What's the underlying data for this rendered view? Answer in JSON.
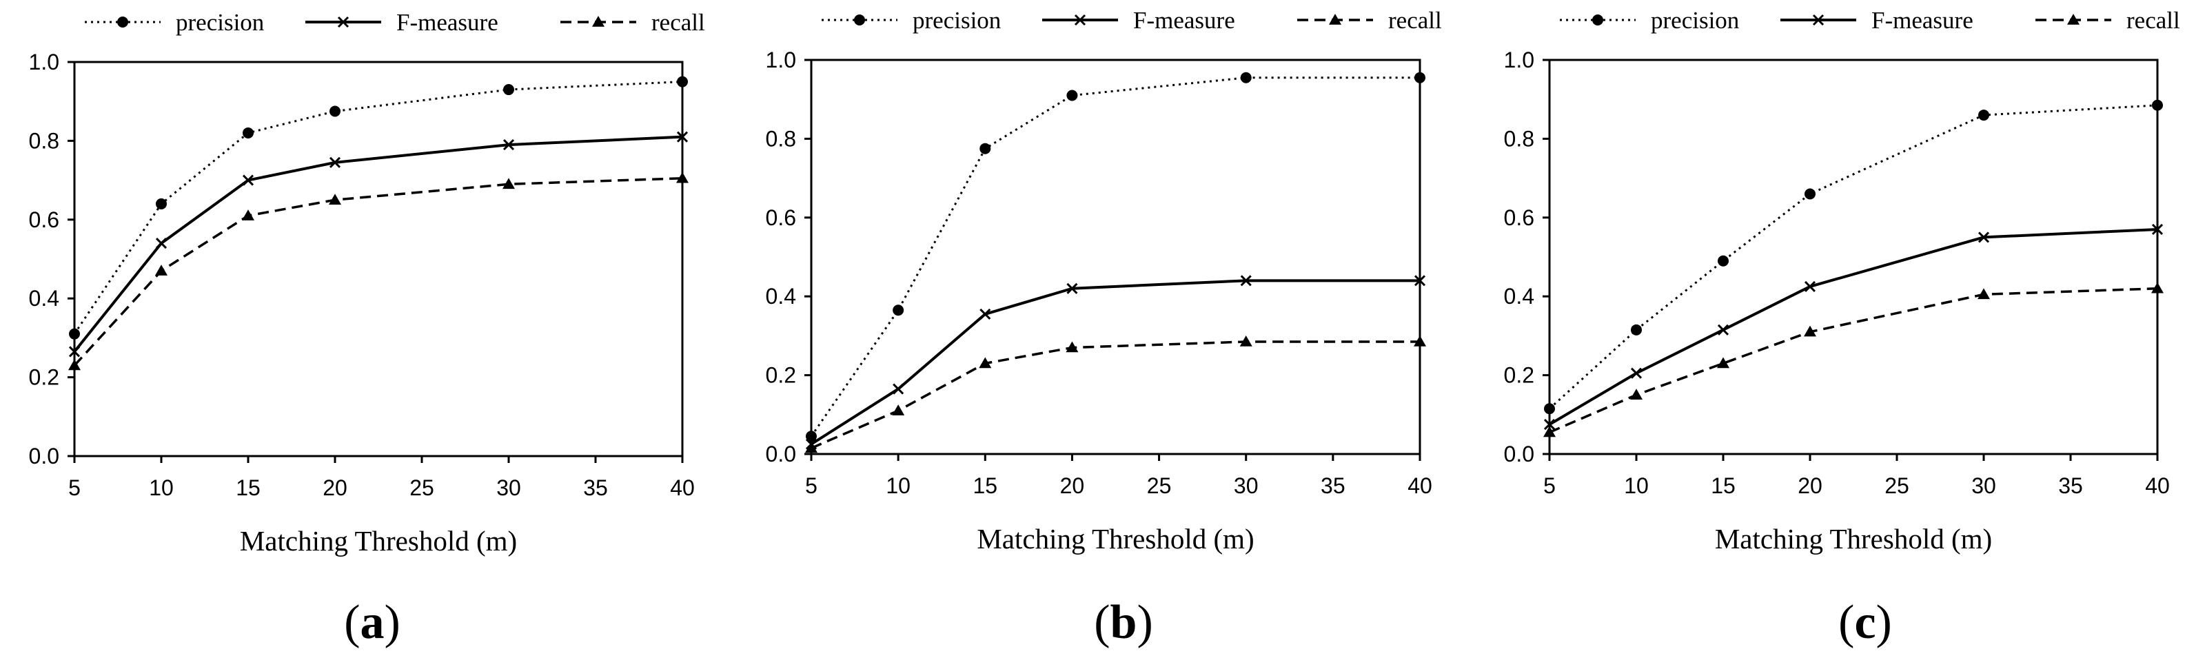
{
  "chart_data": [
    {
      "type": "line",
      "caption_letter": "a",
      "x": [
        5,
        10,
        15,
        20,
        30,
        40
      ],
      "series": [
        {
          "name": "precision",
          "values": [
            0.31,
            0.64,
            0.82,
            0.875,
            0.93,
            0.95
          ]
        },
        {
          "name": "F-measure",
          "values": [
            0.265,
            0.54,
            0.7,
            0.745,
            0.79,
            0.81
          ]
        },
        {
          "name": "recall",
          "values": [
            0.23,
            0.47,
            0.61,
            0.65,
            0.69,
            0.705
          ]
        }
      ],
      "xlabel": "Matching Threshold (m)",
      "xlim": [
        5,
        40
      ],
      "xticks": [
        "5",
        "10",
        "15",
        "20",
        "25",
        "30",
        "35",
        "40"
      ],
      "ylim": [
        0,
        1
      ],
      "yticks": [
        "0.0",
        "0.2",
        "0.4",
        "0.6",
        "0.8",
        "1.0"
      ],
      "grid": false,
      "legend": "top"
    },
    {
      "type": "line",
      "caption_letter": "b",
      "x": [
        5,
        10,
        15,
        20,
        30,
        40
      ],
      "series": [
        {
          "name": "precision",
          "values": [
            0.045,
            0.365,
            0.775,
            0.91,
            0.955,
            0.955
          ]
        },
        {
          "name": "F-measure",
          "values": [
            0.025,
            0.165,
            0.355,
            0.42,
            0.44,
            0.44
          ]
        },
        {
          "name": "recall",
          "values": [
            0.015,
            0.11,
            0.23,
            0.27,
            0.285,
            0.285
          ]
        }
      ],
      "xlabel": "Matching Threshold (m)",
      "xlim": [
        5,
        40
      ],
      "xticks": [
        "5",
        "10",
        "15",
        "20",
        "25",
        "30",
        "35",
        "40"
      ],
      "ylim": [
        0,
        1
      ],
      "yticks": [
        "0.0",
        "0.2",
        "0.4",
        "0.6",
        "0.8",
        "1.0"
      ],
      "grid": false,
      "legend": "top"
    },
    {
      "type": "line",
      "caption_letter": "c",
      "x": [
        5,
        10,
        15,
        20,
        30,
        40
      ],
      "series": [
        {
          "name": "precision",
          "values": [
            0.115,
            0.315,
            0.49,
            0.66,
            0.86,
            0.885
          ]
        },
        {
          "name": "F-measure",
          "values": [
            0.075,
            0.205,
            0.315,
            0.425,
            0.55,
            0.57
          ]
        },
        {
          "name": "recall",
          "values": [
            0.055,
            0.15,
            0.23,
            0.31,
            0.405,
            0.42
          ]
        }
      ],
      "xlabel": "Matching Threshold (m)",
      "xlim": [
        5,
        40
      ],
      "xticks": [
        "5",
        "10",
        "15",
        "20",
        "25",
        "30",
        "35",
        "40"
      ],
      "ylim": [
        0,
        1
      ],
      "yticks": [
        "0.0",
        "0.2",
        "0.4",
        "0.6",
        "0.8",
        "1.0"
      ],
      "grid": false,
      "legend": "top"
    }
  ],
  "colors": {
    "line": "#000000",
    "axis": "#000000",
    "background": "#ffffff"
  },
  "markers": {
    "precision": "circle",
    "F-measure": "cross",
    "recall": "triangle"
  }
}
